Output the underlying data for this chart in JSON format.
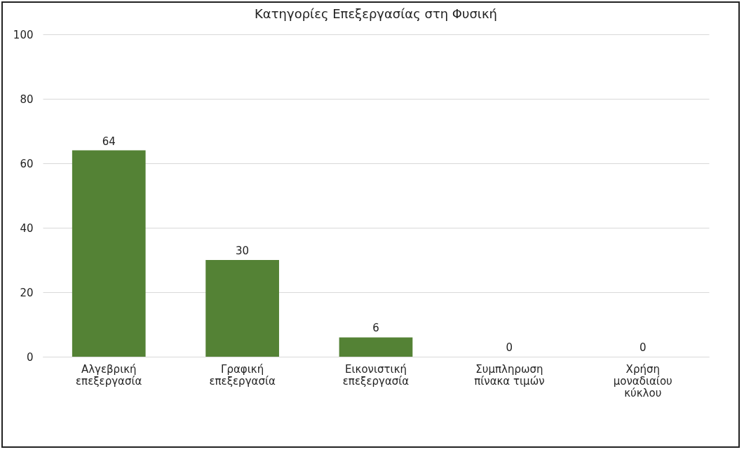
{
  "chart_data": {
    "type": "bar",
    "title": "Κατηγορίες Επεξεργασίας στη Φυσική",
    "categories": [
      "Αλγεβρική επεξεργασία",
      "Γραφική επεξεργασία",
      "Εικονιστική επεξεργασία",
      "Συμπληρωση πίνακα τιμών",
      "Χρήση μοναδιαίου κύκλου"
    ],
    "values": [
      64,
      30,
      6,
      0,
      0
    ],
    "color": "#548235",
    "ylim": [
      0,
      100
    ],
    "yticks": [
      0,
      20,
      40,
      60,
      80,
      100
    ],
    "grid": "y",
    "data_labels": true
  }
}
